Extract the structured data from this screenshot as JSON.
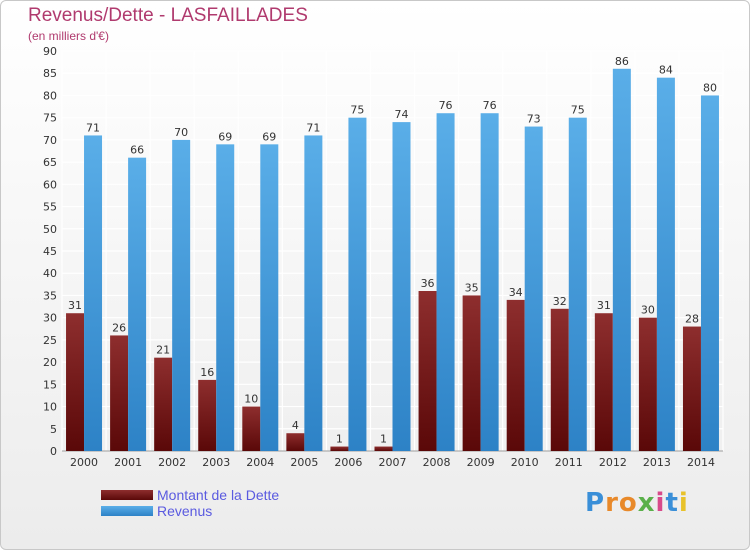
{
  "title": "Revenus/Dette - LASFAILLADES",
  "subtitle": "(en milliers d'€)",
  "logo": {
    "letters": [
      "P",
      "r",
      "o",
      "x",
      "i",
      "t",
      "i"
    ],
    "colors": [
      "#3a8fd8",
      "#e8892a",
      "#e8892a",
      "#5ab04a",
      "#d84a8a",
      "#3a8fd8",
      "#e8c22a"
    ]
  },
  "chart_data": {
    "type": "bar",
    "categories": [
      "2000",
      "2001",
      "2002",
      "2003",
      "2004",
      "2005",
      "2006",
      "2007",
      "2008",
      "2009",
      "2010",
      "2011",
      "2012",
      "2013",
      "2014"
    ],
    "series": [
      {
        "name": "Montant de la Dette",
        "color": "#7a1c1c",
        "values": [
          31,
          26,
          21,
          16,
          10,
          4,
          1,
          1,
          36,
          35,
          34,
          32,
          31,
          30,
          28
        ]
      },
      {
        "name": "Revenus",
        "color": "#4ea2e6",
        "values": [
          71,
          66,
          70,
          69,
          69,
          71,
          75,
          74,
          76,
          76,
          73,
          75,
          86,
          84,
          80
        ]
      }
    ],
    "yticks": [
      0,
      5,
      10,
      15,
      20,
      25,
      30,
      35,
      40,
      45,
      50,
      55,
      60,
      65,
      70,
      75,
      80,
      85,
      90
    ],
    "ylim": [
      0,
      90
    ],
    "grid": true,
    "legend_position": "bottom-left"
  }
}
